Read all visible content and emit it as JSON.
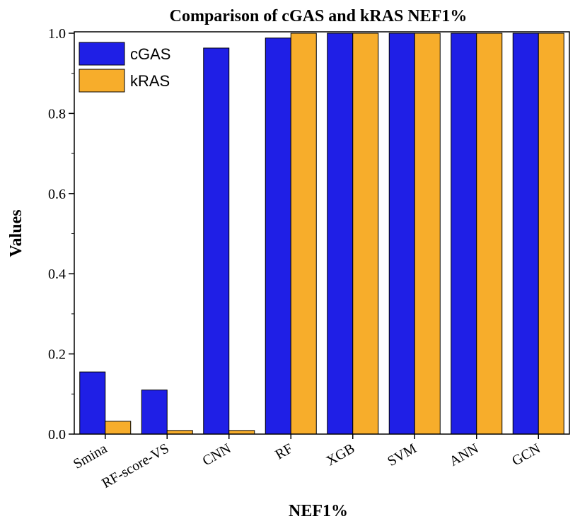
{
  "chart_data": {
    "type": "bar",
    "title": "Comparison of cGAS and kRAS NEF1%",
    "xlabel": "NEF1%",
    "ylabel": "Values",
    "categories": [
      "Smina",
      "RF-score-VS",
      "CNN",
      "RF",
      "XGB",
      "SVM",
      "ANN",
      "GCN"
    ],
    "series": [
      {
        "name": "cGAS",
        "color": "#1f1fe6",
        "values": [
          0.155,
          0.11,
          0.963,
          0.988,
          1.0,
          1.0,
          1.0,
          1.0
        ]
      },
      {
        "name": "kRAS",
        "color": "#f7ad2b",
        "values": [
          0.032,
          0.009,
          0.009,
          1.0,
          1.0,
          1.0,
          1.0,
          1.0
        ]
      }
    ],
    "ylim": [
      0,
      1.0
    ],
    "yticks": [
      "0.0",
      "0.2",
      "0.4",
      "0.6",
      "0.8",
      "1.0"
    ],
    "grid": false,
    "legend": "top-left"
  }
}
